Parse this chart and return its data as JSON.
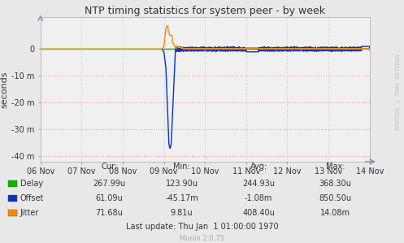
{
  "title": "NTP timing statistics for system peer - by week",
  "ylabel": "seconds",
  "watermark": "Munin 2.0.75",
  "rrdtool_label": "RRDTOOL / TOBI OETIKER",
  "background_color": "#e8e8e8",
  "plot_bg_color": "#f0f0f0",
  "x_labels": [
    "06 Nov",
    "07 Nov",
    "08 Nov",
    "09 Nov",
    "10 Nov",
    "11 Nov",
    "12 Nov",
    "13 Nov",
    "14 Nov"
  ],
  "x_ticks": [
    0,
    1,
    2,
    3,
    4,
    5,
    6,
    7,
    8
  ],
  "ylim": [
    -0.042,
    0.012
  ],
  "yticks": [
    -0.04,
    -0.03,
    -0.02,
    -0.01,
    0.0
  ],
  "ytick_labels": [
    "-40 m",
    "-30 m",
    "-20 m",
    "-10 m",
    "0"
  ],
  "delay_color": "#00bb00",
  "offset_color": "#0033cc",
  "jitter_color": "#ff8800",
  "stats": {
    "headers": [
      "Cur:",
      "Min:",
      "Avg:",
      "Max:"
    ],
    "rows": [
      [
        "Delay",
        "267.99u",
        "123.90u",
        "244.93u",
        "368.30u"
      ],
      [
        "Offset",
        "61.09u",
        "-45.17m",
        "-1.08m",
        "850.50u"
      ],
      [
        "Jitter",
        "71.68u",
        "9.81u",
        "408.40u",
        "14.08m"
      ]
    ],
    "last_update": "Last update: Thu Jan  1 01:00:00 1970"
  }
}
